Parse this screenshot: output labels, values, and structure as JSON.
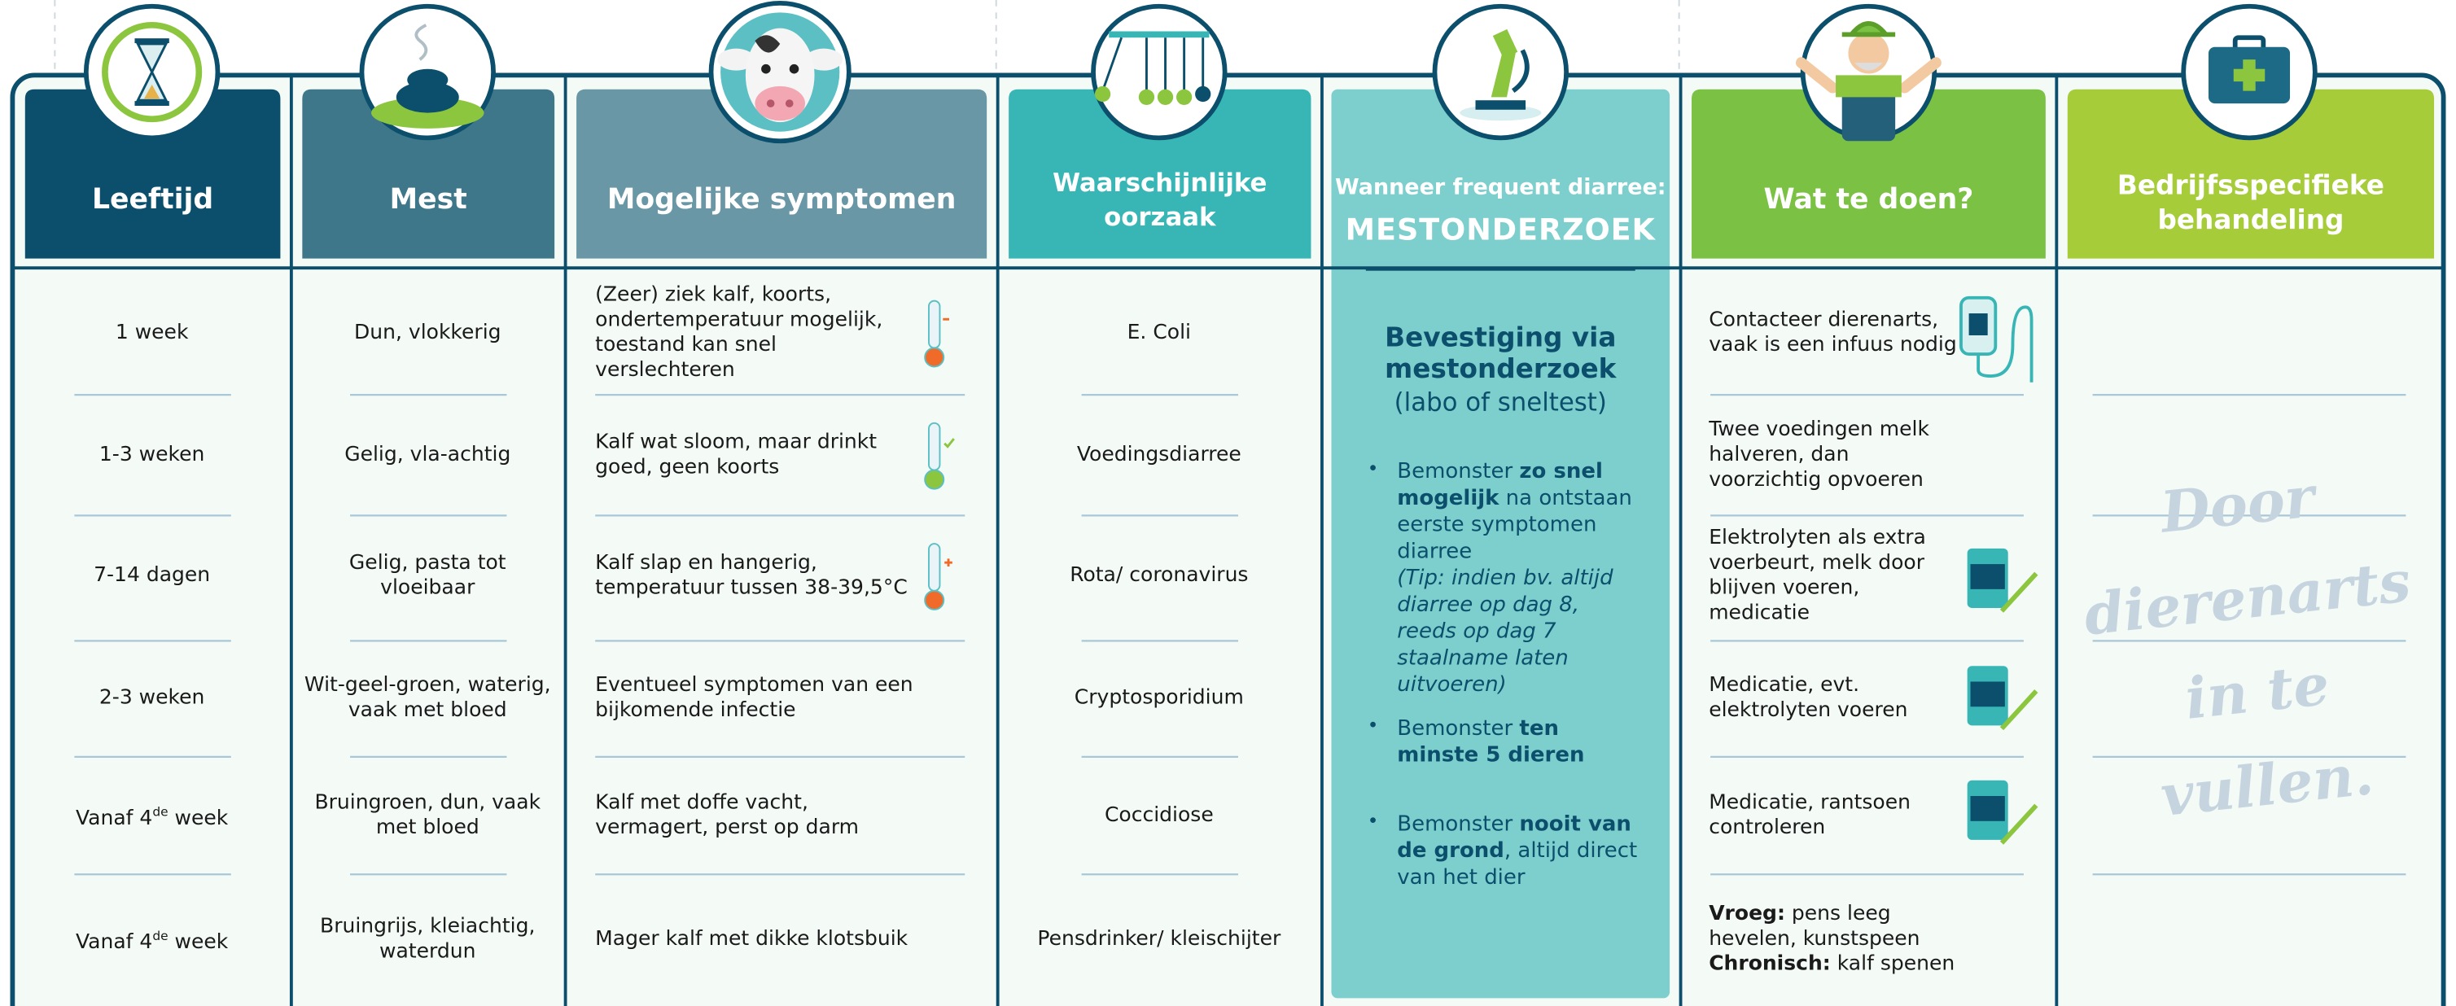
{
  "columns": [
    {
      "header": "Leeftijd",
      "color": "#0b4f6c",
      "cells": [
        "1 week",
        "1-3 weken",
        "7-14 dagen",
        "2-3 weken",
        [
          [
            "Vanaf 4",
            {
              "t": "de",
              "sup": true
            },
            " week"
          ]
        ],
        [
          [
            "Vanaf 4",
            {
              "t": "de",
              "sup": true
            },
            " week"
          ]
        ]
      ]
    },
    {
      "header": "Mest",
      "color": "#3e7789",
      "cells": [
        "Dun, vlokkerig",
        "Gelig, vla-achtig",
        "Gelig, pasta tot vloeibaar",
        "Wit-geel-groen, waterig, vaak met bloed",
        "Bruingroen, dun, vaak met bloed",
        "Bruingrijs, kleiachtig, waterdun"
      ]
    },
    {
      "header": "Mogelijke symptomen",
      "color": "#6a97a5",
      "cells": [
        "(Zeer) ziek kalf, koorts, ondertemperatuur mogelijk, toestand kan snel verslechteren",
        "Kalf wat sloom, maar drinkt goed, geen koorts",
        "Kalf slap en hangerig, temperatuur tussen 38-39,5°C",
        "Eventueel symptomen van een bijkomende infectie",
        "Kalf met doffe vacht, vermagert, perst op darm",
        "Mager kalf met dikke klotsbuik"
      ]
    },
    {
      "header": "Waarschijnlijke oorzaak",
      "color": "#38b6b6",
      "cells": [
        "E. Coli",
        "Voedingsdiarree",
        "Rota/ coronavirus",
        "Cryptosporidium",
        "Coccidiose",
        "Pensdrinker/ kleischijter"
      ]
    },
    {
      "header_small": "Wanneer frequent diarree:",
      "header": "MESTONDERZOEK",
      "color": "#7dcfcd",
      "heading": "Bevestiging via mestonderzoek",
      "subheading": "(labo of sneltest)",
      "bullets": [
        [
          [
            "Bemonster ",
            {
              "t": "zo snel mogelijk",
              "b": true
            },
            " na ontstaan eerste symptomen diarree"
          ],
          [
            {
              "t": "(Tip: indien bv. altijd diarree op dag 8, reeds op dag 7 staalname laten uitvoeren)",
              "i": true
            }
          ]
        ],
        [
          [
            "Bemonster ",
            {
              "t": "ten minste 5 dieren",
              "b": true
            }
          ]
        ],
        [
          [
            "Bemonster ",
            {
              "t": "nooit van de grond",
              "b": true
            },
            ", altijd direct van het dier"
          ]
        ]
      ]
    },
    {
      "header": "Wat te doen?",
      "color": "#7bc143",
      "cells": [
        "Contacteer dierenarts, vaak is een infuus nodig",
        "Twee voedingen melk halveren, dan voorzichtig opvoeren",
        "Elektrolyten als extra voerbeurt, melk door blijven voeren, medicatie",
        "Medicatie, evt. elektrolyten voeren",
        "Medicatie, rantsoen controleren",
        [
          [
            {
              "t": "Vroeg:",
              "b": true
            },
            " pens leeg hevelen, kunstspeen"
          ],
          [
            {
              "t": "Chronisch:",
              "b": true
            },
            " kalf spenen"
          ]
        ]
      ]
    },
    {
      "header": "Bedrijfsspecifieke behandeling",
      "color": "#a7cc3a",
      "note": [
        "Door",
        "dierenarts",
        "in te",
        "vullen."
      ]
    }
  ]
}
